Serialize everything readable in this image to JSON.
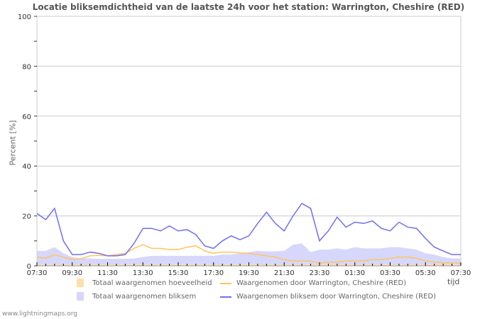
{
  "chart_data": {
    "type": "line",
    "title": "Locatie bliksemdichtheid van de laatste 24h voor het station: Warrington, Cheshire (RED)",
    "xlabel": "tijd",
    "ylabel": "Percent   [%]",
    "ylim": [
      0,
      100
    ],
    "yticks": [
      "0",
      "20",
      "40",
      "60",
      "80",
      "100"
    ],
    "xticks": [
      "07:30",
      "09:30",
      "11:30",
      "13:30",
      "15:30",
      "17:30",
      "19:30",
      "21:30",
      "23:30",
      "01:30",
      "03:30",
      "05:30",
      "07:30"
    ],
    "grid": true,
    "legend_position": "bottom",
    "x": [
      "07:30",
      "08:00",
      "08:30",
      "09:00",
      "09:30",
      "10:00",
      "10:30",
      "11:00",
      "11:30",
      "12:00",
      "12:30",
      "13:00",
      "13:30",
      "14:00",
      "14:30",
      "15:00",
      "15:30",
      "16:00",
      "16:30",
      "17:00",
      "17:30",
      "18:00",
      "18:30",
      "19:00",
      "19:30",
      "20:00",
      "20:30",
      "21:00",
      "21:30",
      "22:00",
      "22:30",
      "23:00",
      "23:30",
      "00:00",
      "00:30",
      "01:00",
      "01:30",
      "02:00",
      "02:30",
      "03:00",
      "03:30",
      "04:00",
      "04:30",
      "05:00",
      "05:30",
      "06:00",
      "06:30",
      "07:00",
      "07:30"
    ],
    "series": [
      {
        "name": "Totaal waargenomen hoeveelheid",
        "type": "area",
        "color": "#ffdea8",
        "values": [
          0.5,
          0.5,
          0.5,
          0.5,
          0.5,
          0.5,
          0.5,
          0.5,
          0.5,
          0.5,
          0.5,
          0.5,
          0.5,
          0.5,
          0.5,
          0.5,
          0.5,
          0.5,
          0.5,
          0.5,
          0.5,
          0.5,
          0.5,
          0.5,
          0.5,
          0.5,
          0.5,
          0.5,
          0.5,
          0.5,
          0.5,
          0.5,
          0.5,
          0.5,
          0.5,
          0.5,
          0.5,
          0.5,
          0.5,
          0.5,
          0.5,
          0.5,
          0.5,
          0.5,
          0.5,
          0.5,
          0.5,
          0.5,
          0.5
        ]
      },
      {
        "name": "Totaal waargenomen bliksem",
        "type": "area",
        "color": "#d7d7fb",
        "values": [
          6,
          6,
          7.5,
          5,
          3.5,
          3,
          3,
          2.8,
          2.8,
          2.8,
          2.8,
          3,
          3.5,
          4,
          4,
          4,
          4,
          4,
          4,
          4,
          4,
          4.5,
          4.5,
          5,
          5.5,
          6,
          5.8,
          5.8,
          6,
          8.5,
          9,
          5.5,
          6.5,
          6.5,
          7,
          6.5,
          7.5,
          7,
          7,
          7,
          7.5,
          7.5,
          7,
          6.5,
          5,
          4.5,
          3.5,
          3,
          3
        ]
      },
      {
        "name": "Waargenomen door Warrington, Cheshire (RED)",
        "type": "line",
        "color": "#ffc55a",
        "values": [
          3.5,
          3,
          4.5,
          3.5,
          2.5,
          2.8,
          4,
          4.2,
          4,
          4.5,
          5,
          7,
          8.5,
          7,
          7,
          6.5,
          6.5,
          7.5,
          8,
          6,
          5,
          5.5,
          5.5,
          5.2,
          5,
          4.5,
          4,
          3.5,
          2.5,
          2,
          2,
          2,
          1,
          1.5,
          1.5,
          2,
          2,
          2,
          2.5,
          2.5,
          3,
          3.5,
          3.5,
          3,
          2,
          1.5,
          1.2,
          1.2,
          1
        ]
      },
      {
        "name": "Waargenomen bliksem door Warrington, Cheshire (RED)",
        "type": "line",
        "color": "#6f6ff0",
        "values": [
          21,
          18.5,
          23,
          10,
          4.5,
          4.5,
          5.5,
          5,
          4,
          4,
          4.5,
          9,
          15,
          15,
          14,
          16,
          14,
          14.5,
          12.5,
          8,
          7,
          10,
          12,
          10.5,
          12,
          17,
          21.5,
          17,
          14,
          20,
          25,
          23,
          10,
          14,
          19.5,
          15.5,
          17.5,
          17,
          18,
          15,
          14,
          17.5,
          15.5,
          15,
          11,
          7.5,
          6,
          4.5,
          4.5
        ]
      }
    ]
  },
  "legend": {
    "items": [
      {
        "label": "Totaal waargenomen hoeveelheid",
        "kind": "swatch",
        "color": "#ffdea8"
      },
      {
        "label": "Totaal waargenomen bliksem",
        "kind": "swatch",
        "color": "#d7d7fb"
      },
      {
        "label": "Waargenomen door Warrington, Cheshire (RED)",
        "kind": "line",
        "color": "#ffc55a"
      },
      {
        "label": "Waargenomen bliksem door Warrington, Cheshire (RED)",
        "kind": "line",
        "color": "#6f6ff0"
      }
    ]
  },
  "footer": "www.lightningmaps.org"
}
